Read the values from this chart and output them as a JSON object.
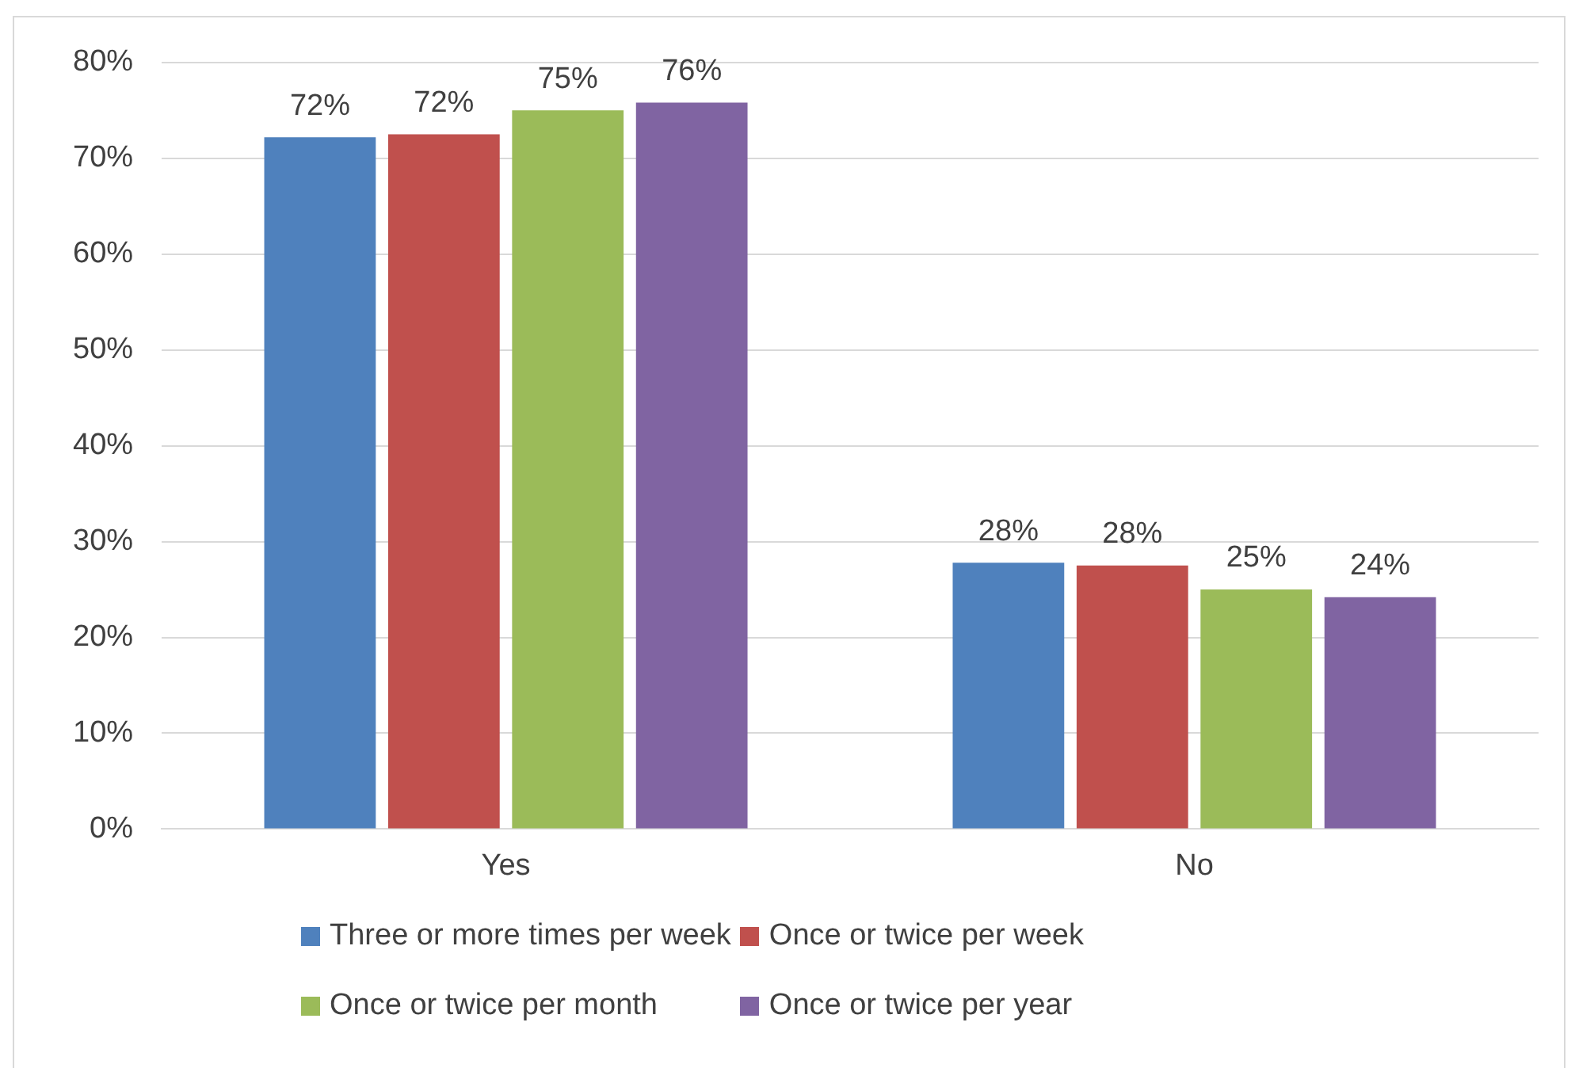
{
  "chart_data": {
    "type": "bar",
    "categories": [
      "Yes",
      "No"
    ],
    "series": [
      {
        "name": "Three or more times per week",
        "color": "#4f81bd",
        "values": [
          72.2,
          27.8
        ],
        "value_labels": [
          "72%",
          "28%"
        ]
      },
      {
        "name": "Once or twice per week",
        "color": "#c0504d",
        "values": [
          72.5,
          27.5
        ],
        "value_labels": [
          "72%",
          "28%"
        ]
      },
      {
        "name": "Once or twice per month",
        "color": "#9bbb59",
        "values": [
          75,
          25
        ],
        "value_labels": [
          "75%",
          "25%"
        ]
      },
      {
        "name": "Once or twice per year",
        "color": "#8064a2",
        "values": [
          75.8,
          24.2
        ],
        "value_labels": [
          "76%",
          "24%"
        ]
      }
    ],
    "ylim": [
      0,
      80
    ],
    "yticks": [
      {
        "value": 0,
        "label": "0%"
      },
      {
        "value": 10,
        "label": "10%"
      },
      {
        "value": 20,
        "label": "20%"
      },
      {
        "value": 30,
        "label": "30%"
      },
      {
        "value": 40,
        "label": "40%"
      },
      {
        "value": 50,
        "label": "50%"
      },
      {
        "value": 60,
        "label": "60%"
      },
      {
        "value": 70,
        "label": "70%"
      },
      {
        "value": 80,
        "label": "80%"
      }
    ],
    "grid": "y",
    "legend": "bottom"
  }
}
